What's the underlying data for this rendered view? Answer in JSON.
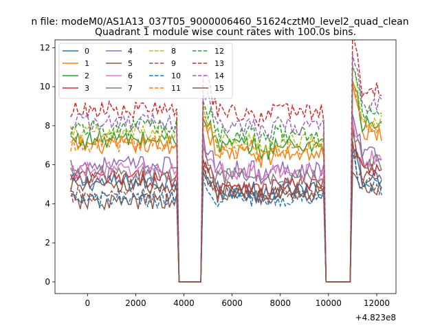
{
  "figure": {
    "suptitle": "n file: modeM0/AS1A13_037T05_9000006460_51624cztM0_level2_quad_clean"
  },
  "chart_data": {
    "type": "line",
    "title": "Quadrant 1 module wise count rates with 100.0s bins.",
    "xlabel": "",
    "ylabel": "",
    "x_offset_label": "+4.823e8",
    "xlim": [
      -1350,
      12800
    ],
    "ylim": [
      -0.6,
      12.4
    ],
    "xticks": [
      0,
      2000,
      4000,
      6000,
      8000,
      10000,
      12000
    ],
    "xtick_labels": [
      "0",
      "2000",
      "4000",
      "6000",
      "8000",
      "10000",
      "12000"
    ],
    "yticks": [
      0,
      2,
      4,
      6,
      8,
      10,
      12
    ],
    "ytick_labels": [
      "0",
      "2",
      "4",
      "6",
      "8",
      "10",
      "12"
    ],
    "grid": false,
    "legend_position": "upper-left",
    "legend_columns": 4,
    "x_range_note": "100 s bins from -700 to 12200",
    "gaps": [
      [
        3800,
        4700
      ],
      [
        9900,
        10900
      ]
    ],
    "segments": [
      [
        -700,
        3750
      ],
      [
        4750,
        9850
      ],
      [
        10950,
        12200
      ]
    ],
    "series": [
      {
        "name": "0",
        "color": "#1f77b4",
        "dashed": false,
        "levels": [
          5.1,
          4.7,
          5.3
        ]
      },
      {
        "name": "1",
        "color": "#ff7f0e",
        "dashed": false,
        "levels": [
          7.0,
          6.6,
          7.6
        ]
      },
      {
        "name": "2",
        "color": "#2ca02c",
        "dashed": false,
        "levels": [
          7.3,
          7.0,
          8.0
        ]
      },
      {
        "name": "3",
        "color": "#d62728",
        "dashed": false,
        "levels": [
          5.3,
          5.0,
          5.8
        ]
      },
      {
        "name": "4",
        "color": "#9467bd",
        "dashed": false,
        "levels": [
          6.0,
          5.8,
          6.6
        ]
      },
      {
        "name": "5",
        "color": "#8c564b",
        "dashed": false,
        "levels": [
          4.1,
          4.5,
          4.6
        ]
      },
      {
        "name": "6",
        "color": "#e377c2",
        "dashed": false,
        "levels": [
          5.7,
          5.6,
          6.3
        ]
      },
      {
        "name": "7",
        "color": "#7f7f7f",
        "dashed": false,
        "levels": [
          5.5,
          5.4,
          6.1
        ]
      },
      {
        "name": "8",
        "color": "#bcbd22",
        "dashed": true,
        "levels": [
          7.6,
          7.2,
          8.3
        ]
      },
      {
        "name": "9",
        "color": "#8c564b",
        "dashed": true,
        "levels": [
          4.4,
          4.6,
          4.9
        ]
      },
      {
        "name": "10",
        "color": "#1f77b4",
        "dashed": true,
        "levels": [
          4.2,
          4.3,
          4.8
        ]
      },
      {
        "name": "11",
        "color": "#ff7f0e",
        "dashed": true,
        "levels": [
          7.1,
          6.9,
          7.9
        ]
      },
      {
        "name": "12",
        "color": "#2ca02c",
        "dashed": true,
        "levels": [
          7.9,
          7.6,
          8.7
        ]
      },
      {
        "name": "13",
        "color": "#d62728",
        "dashed": true,
        "levels": [
          8.8,
          8.7,
          9.9
        ]
      },
      {
        "name": "14",
        "color": "#9467bd",
        "dashed": true,
        "levels": [
          8.2,
          8.0,
          9.1
        ]
      },
      {
        "name": "15",
        "color": "#8c564b",
        "dashed": false,
        "levels": [
          4.9,
          4.7,
          5.3
        ]
      }
    ]
  }
}
